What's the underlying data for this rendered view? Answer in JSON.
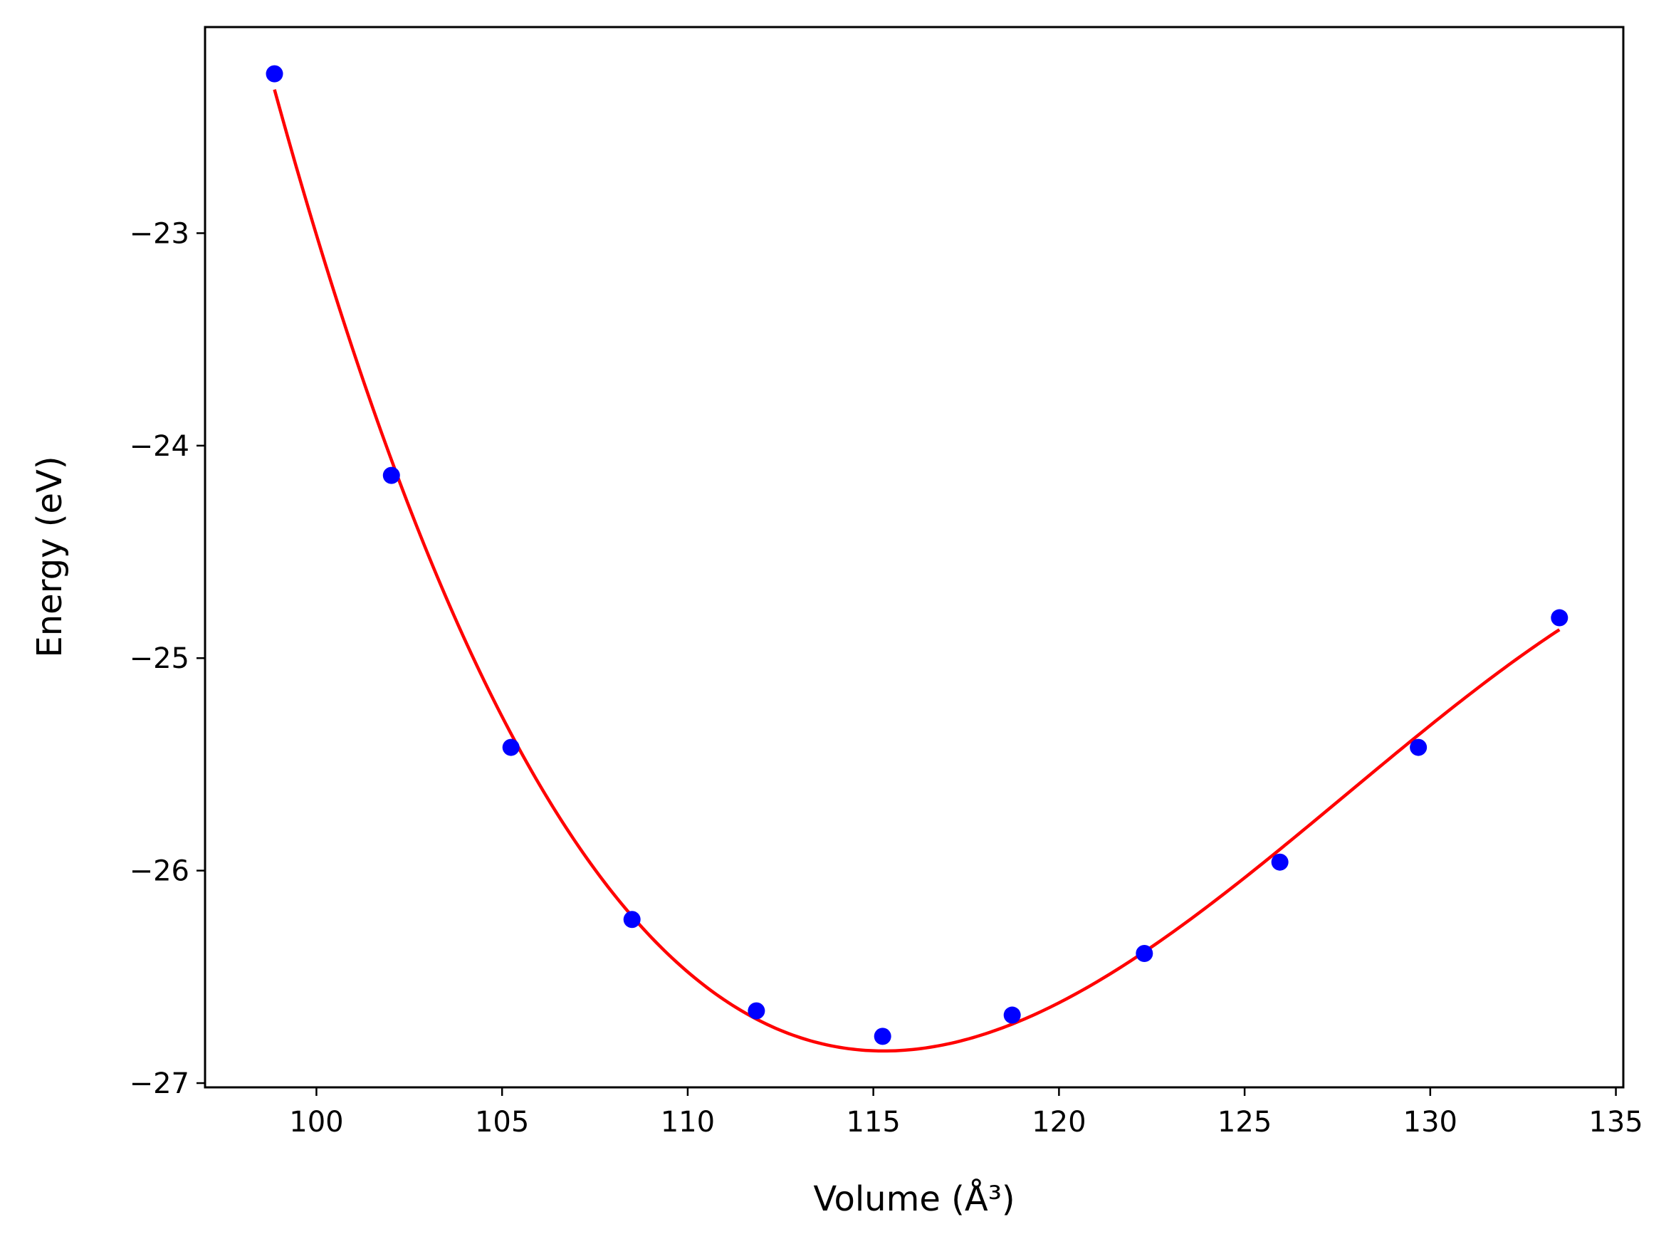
{
  "chart_data": {
    "type": "scatter",
    "xlabel": "Volume (Å³)",
    "ylabel": "Energy (eV)",
    "xlim": [
      97,
      135.2
    ],
    "ylim": [
      -27.02,
      -22.03
    ],
    "x_ticks": [
      100,
      105,
      110,
      115,
      120,
      125,
      130,
      135
    ],
    "y_ticks": [
      -27,
      -26,
      -25,
      -24,
      -23
    ],
    "x_tick_labels": [
      "100",
      "105",
      "110",
      "115",
      "120",
      "125",
      "130",
      "135"
    ],
    "y_tick_labels": [
      "−27",
      "−26",
      "−25",
      "−24",
      "−23"
    ],
    "grid": false,
    "series": [
      {
        "kind": "points",
        "color": "#0000ff",
        "x": [
          98.87,
          102.02,
          105.24,
          108.5,
          111.85,
          115.25,
          118.74,
          122.3,
          125.95,
          129.68,
          133.48
        ],
        "y": [
          -22.25,
          -24.14,
          -25.42,
          -26.23,
          -26.66,
          -26.78,
          -26.68,
          -26.39,
          -25.96,
          -25.42,
          -24.81
        ]
      },
      {
        "kind": "fit-line",
        "color": "#ff0000",
        "x_range": [
          98.87,
          133.48
        ]
      }
    ]
  }
}
